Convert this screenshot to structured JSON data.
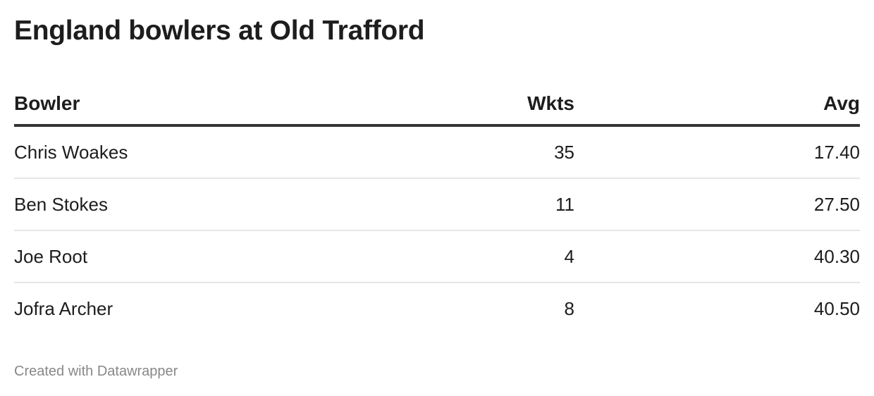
{
  "title": "England bowlers at Old Trafford",
  "chart_data": {
    "type": "table",
    "columns": [
      "Bowler",
      "Wkts",
      "Avg"
    ],
    "rows": [
      [
        "Chris Woakes",
        "35",
        "17.40"
      ],
      [
        "Ben Stokes",
        "11",
        "27.50"
      ],
      [
        "Joe Root",
        "4",
        "40.30"
      ],
      [
        "Jofra Archer",
        "8",
        "40.50"
      ]
    ]
  },
  "footer": "Created with Datawrapper"
}
